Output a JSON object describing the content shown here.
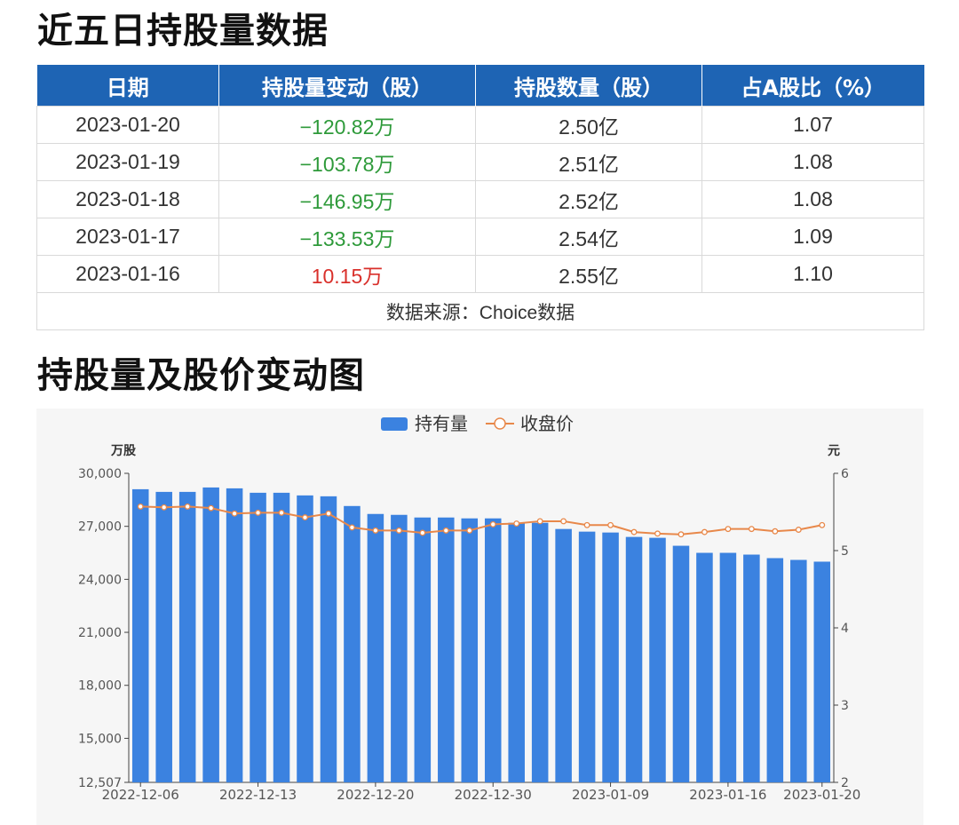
{
  "section1": {
    "title": "近五日持股量数据"
  },
  "table": {
    "headers": [
      "日期",
      "持股量变动（股）",
      "持股数量（股）",
      "占A股比（%）"
    ],
    "rows": [
      {
        "date": "2023-01-20",
        "change": "−120.82万",
        "holding": "2.50亿",
        "ratio": "1.07",
        "dir": "neg"
      },
      {
        "date": "2023-01-19",
        "change": "−103.78万",
        "holding": "2.51亿",
        "ratio": "1.08",
        "dir": "neg"
      },
      {
        "date": "2023-01-18",
        "change": "−146.95万",
        "holding": "2.52亿",
        "ratio": "1.08",
        "dir": "neg"
      },
      {
        "date": "2023-01-17",
        "change": "−133.53万",
        "holding": "2.54亿",
        "ratio": "1.09",
        "dir": "neg"
      },
      {
        "date": "2023-01-16",
        "change": "10.15万",
        "holding": "2.55亿",
        "ratio": "1.10",
        "dir": "pos"
      }
    ],
    "source": "数据来源：Choice数据"
  },
  "section2": {
    "title": "持股量及股价变动图"
  },
  "colors": {
    "header_bg": "#1e64b4",
    "bar": "#3b82e0",
    "line": "#e8884a",
    "negative": "#2e9a3a",
    "positive": "#d9302b"
  },
  "chart_data": {
    "type": "bar",
    "legend": [
      {
        "name": "持有量",
        "type": "bar"
      },
      {
        "name": "收盘价",
        "type": "line"
      }
    ],
    "legend_position": "top-center",
    "y_left": {
      "unit": "万股",
      "min": 12507,
      "max": 30000,
      "ticks": [
        "30,000",
        "27,000",
        "24,000",
        "21,000",
        "18,000",
        "15,000",
        "12,507"
      ]
    },
    "y_right": {
      "unit": "元",
      "min": 2,
      "max": 6,
      "ticks": [
        "6",
        "5",
        "4",
        "3",
        "2"
      ]
    },
    "x_tick_labels": [
      "2022-12-06",
      "2022-12-13",
      "2022-12-20",
      "2022-12-30",
      "2023-01-09",
      "2023-01-16",
      "2023-01-20"
    ],
    "x_tick_index": [
      0,
      5,
      10,
      15,
      20,
      25,
      29
    ],
    "series": [
      {
        "name": "持有量",
        "type": "bar",
        "values": [
          29100,
          28950,
          28950,
          29200,
          29150,
          28900,
          28900,
          28750,
          28700,
          28150,
          27700,
          27650,
          27500,
          27500,
          27450,
          27450,
          27200,
          27200,
          26850,
          26700,
          26650,
          26400,
          26350,
          25900,
          25500,
          25500,
          25400,
          25200,
          25100,
          25000
        ]
      },
      {
        "name": "收盘价",
        "type": "line",
        "values": [
          5.57,
          5.56,
          5.57,
          5.55,
          5.48,
          5.49,
          5.49,
          5.43,
          5.48,
          5.3,
          5.26,
          5.26,
          5.23,
          5.26,
          5.26,
          5.34,
          5.35,
          5.38,
          5.38,
          5.33,
          5.33,
          5.24,
          5.22,
          5.21,
          5.24,
          5.28,
          5.28,
          5.25,
          5.27,
          5.33
        ]
      }
    ]
  }
}
